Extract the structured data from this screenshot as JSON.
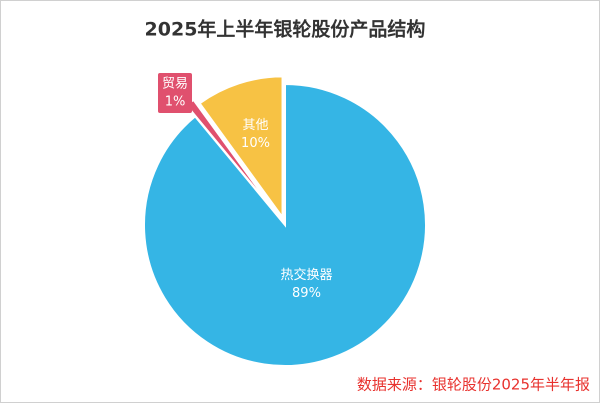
{
  "chart_data": {
    "type": "pie",
    "title": "2025年上半年银轮股份产品结构",
    "categories": [
      "热交换器",
      "贸易",
      "其他"
    ],
    "values": [
      89,
      1,
      10
    ],
    "value_labels": [
      "89%",
      "1%",
      "10%"
    ],
    "colors": [
      "#35b5e5",
      "#e0506e",
      "#f7c244"
    ],
    "source": "数据来源：银轮股份2025年半年报"
  }
}
